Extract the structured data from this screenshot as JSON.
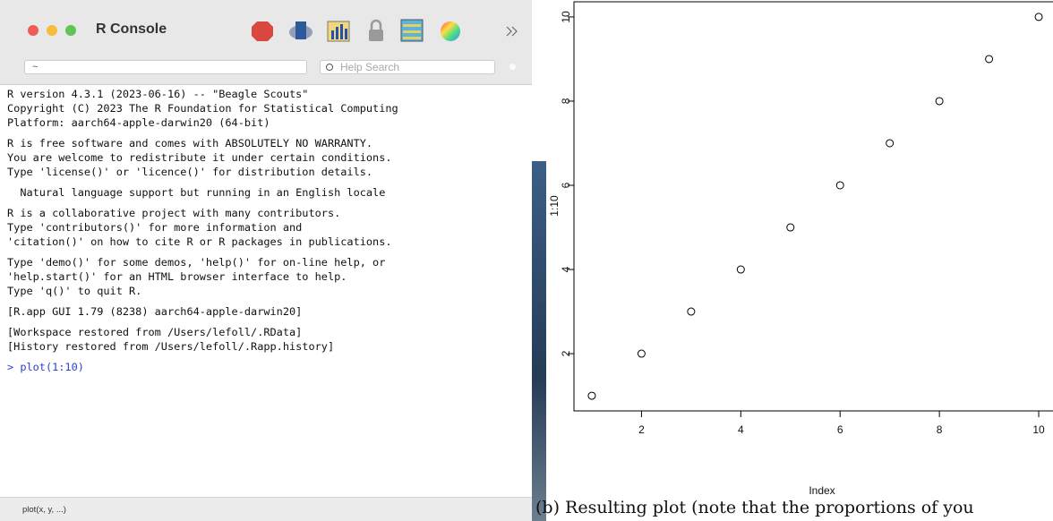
{
  "console": {
    "title": "R Console",
    "path": "~",
    "search_placeholder": "Help Search",
    "paragraphs": [
      [
        "R version 4.3.1 (2023-06-16) -- \"Beagle Scouts\"",
        "Copyright (C) 2023 The R Foundation for Statistical Computing",
        "Platform: aarch64-apple-darwin20 (64-bit)"
      ],
      [
        "R is free software and comes with ABSOLUTELY NO WARRANTY.",
        "You are welcome to redistribute it under certain conditions.",
        "Type 'license()' or 'licence()' for distribution details."
      ],
      [
        "  Natural language support but running in an English locale"
      ],
      [
        "R is a collaborative project with many contributors.",
        "Type 'contributors()' for more information and",
        "'citation()' on how to cite R or R packages in publications."
      ],
      [
        "Type 'demo()' for some demos, 'help()' for on-line help, or",
        "'help.start()' for an HTML browser interface to help.",
        "Type 'q()' to quit R."
      ],
      [
        "[R.app GUI 1.79 (8238) aarch64-apple-darwin20]"
      ],
      [
        "[Workspace restored from /Users/lefoll/.RData]",
        "[History restored from /Users/lefoll/.Rapp.history]"
      ]
    ],
    "command": "> plot(1:10)",
    "status": "plot(x, y, ...)"
  },
  "chart_data": {
    "type": "scatter",
    "xlabel": "Index",
    "ylabel": "1:10",
    "color": "#000000",
    "x": [
      1,
      2,
      3,
      4,
      5,
      6,
      7,
      8,
      9,
      10
    ],
    "values": [
      1,
      2,
      3,
      4,
      5,
      6,
      7,
      8,
      9,
      10
    ],
    "xlim": [
      0.64,
      10.36
    ],
    "ylim": [
      0.64,
      10.36
    ],
    "xticks": [
      2,
      4,
      6,
      8,
      10
    ],
    "yticks": [
      2,
      4,
      6,
      8,
      10
    ]
  },
  "caption": "(b) Resulting plot (note that the proportions of you"
}
